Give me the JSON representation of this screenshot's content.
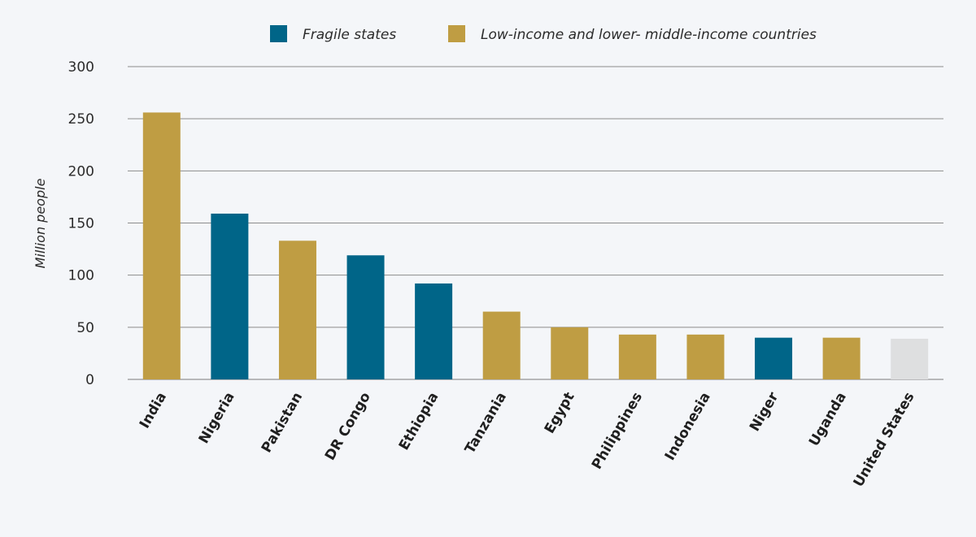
{
  "chart_data": {
    "type": "bar",
    "ylabel": "Million people",
    "ylim": [
      0,
      300
    ],
    "yticks": [
      0,
      50,
      100,
      150,
      200,
      250,
      300
    ],
    "grid": true,
    "legend_position": "top",
    "legend": [
      {
        "key": "fragile",
        "label": "Fragile states",
        "color": "#006588"
      },
      {
        "key": "lmic",
        "label": "Low-income and lower- middle-income countries",
        "color": "#bf9d43"
      }
    ],
    "other_color": "#dedfe0",
    "categories": [
      "India",
      "Nigeria",
      "Pakistan",
      "DR Congo",
      "Ethiopia",
      "Tanzania",
      "Egypt",
      "Philippines",
      "Indonesia",
      "Niger",
      "Uganda",
      "United States"
    ],
    "values": [
      256,
      159,
      133,
      119,
      92,
      65,
      50,
      43,
      43,
      40,
      40,
      39
    ],
    "groups": [
      "lmic",
      "fragile",
      "lmic",
      "fragile",
      "fragile",
      "lmic",
      "lmic",
      "lmic",
      "lmic",
      "fragile",
      "lmic",
      "other"
    ]
  }
}
